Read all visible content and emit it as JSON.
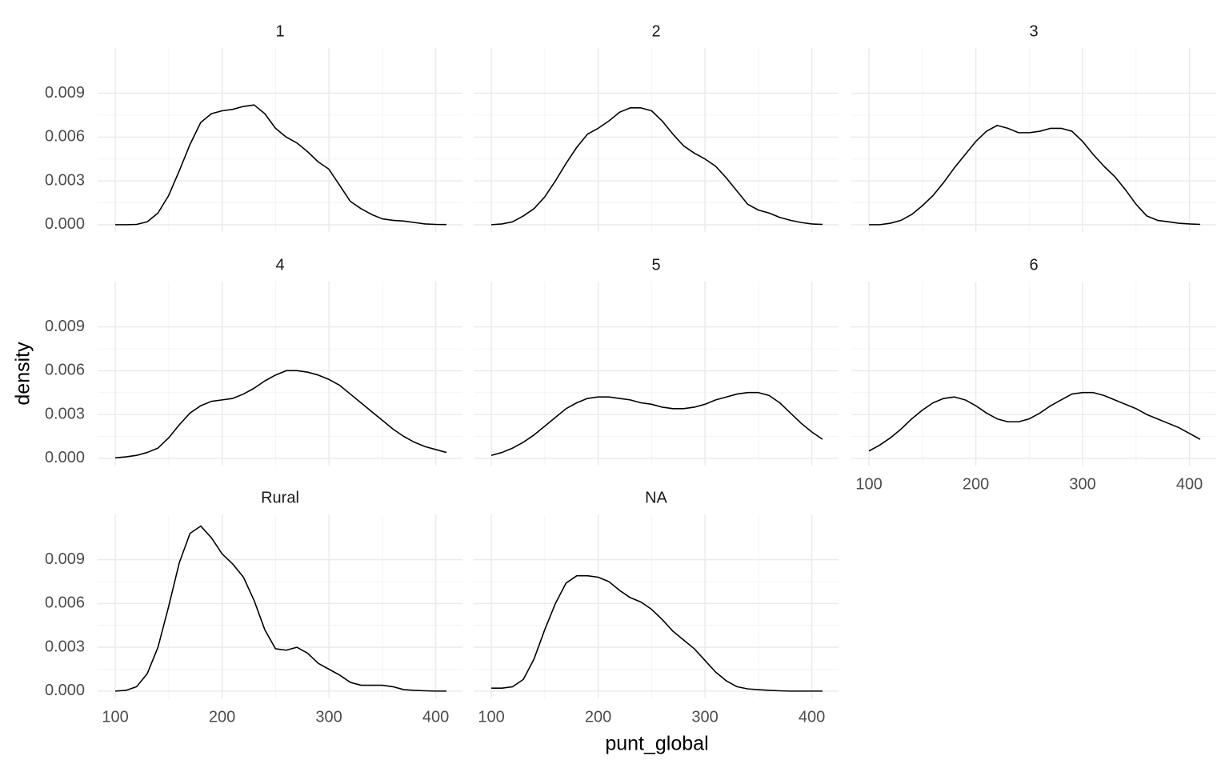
{
  "chart_data": {
    "type": "line",
    "xlabel": "punt_global",
    "ylabel": "density",
    "xlim": [
      83.5,
      425
    ],
    "ylim": [
      -0.0005,
      0.0121
    ],
    "xticks": [
      100,
      200,
      300,
      400
    ],
    "yticks": [
      {
        "value": 0,
        "label": "0.000"
      },
      0.003,
      0.006,
      0.009
    ],
    "grid": true,
    "color": "#000000",
    "x": [
      100,
      110,
      120,
      130,
      140,
      150,
      160,
      170,
      180,
      190,
      200,
      210,
      220,
      230,
      240,
      250,
      260,
      270,
      280,
      290,
      300,
      310,
      320,
      330,
      340,
      350,
      360,
      370,
      380,
      390,
      400,
      410
    ],
    "panels": [
      {
        "title": "1",
        "values": [
          0,
          0,
          2e-05,
          0.0002,
          0.0008,
          0.002,
          0.0037,
          0.0055,
          0.007,
          0.0076,
          0.0078,
          0.0079,
          0.0081,
          0.0082,
          0.0076,
          0.0066,
          0.006,
          0.0056,
          0.005,
          0.0043,
          0.0038,
          0.0027,
          0.0016,
          0.0011,
          0.0007,
          0.0004,
          0.0003,
          0.00025,
          0.00015,
          5e-05,
          2e-05,
          1e-05
        ]
      },
      {
        "title": "2",
        "values": [
          0,
          5e-05,
          0.0002,
          0.0006,
          0.0011,
          0.0019,
          0.003,
          0.0042,
          0.0053,
          0.0062,
          0.0066,
          0.0071,
          0.0077,
          0.008,
          0.008,
          0.0078,
          0.0071,
          0.0062,
          0.0054,
          0.0049,
          0.0045,
          0.004,
          0.0032,
          0.0023,
          0.0014,
          0.001,
          0.0008,
          0.0005,
          0.0003,
          0.00015,
          5e-05,
          2e-05
        ]
      },
      {
        "title": "3",
        "values": [
          0,
          0,
          0.0001,
          0.0003,
          0.0007,
          0.0013,
          0.002,
          0.0029,
          0.0039,
          0.0048,
          0.0057,
          0.0064,
          0.0068,
          0.0066,
          0.0063,
          0.0063,
          0.0064,
          0.0066,
          0.0066,
          0.0064,
          0.0057,
          0.0048,
          0.004,
          0.0033,
          0.0024,
          0.0014,
          0.0006,
          0.0003,
          0.0002,
          0.0001,
          5e-05,
          2e-05
        ]
      },
      {
        "title": "4",
        "values": [
          3e-05,
          0.0001,
          0.0002,
          0.0004,
          0.0007,
          0.0014,
          0.0023,
          0.0031,
          0.0036,
          0.0039,
          0.004,
          0.0041,
          0.0044,
          0.0048,
          0.0053,
          0.0057,
          0.006,
          0.006,
          0.0059,
          0.0057,
          0.0054,
          0.005,
          0.0044,
          0.0038,
          0.0032,
          0.0026,
          0.002,
          0.0015,
          0.0011,
          0.0008,
          0.0006,
          0.0004
        ]
      },
      {
        "title": "5",
        "values": [
          0.0002,
          0.0004,
          0.0007,
          0.0011,
          0.0016,
          0.0022,
          0.0028,
          0.0034,
          0.0038,
          0.0041,
          0.0042,
          0.0042,
          0.0041,
          0.004,
          0.0038,
          0.0037,
          0.0035,
          0.0034,
          0.0034,
          0.0035,
          0.0037,
          0.004,
          0.0042,
          0.0044,
          0.0045,
          0.0045,
          0.0043,
          0.0038,
          0.0031,
          0.0024,
          0.0018,
          0.0013
        ]
      },
      {
        "title": "6",
        "values": [
          0.0005,
          0.0009,
          0.0014,
          0.002,
          0.0027,
          0.0033,
          0.0038,
          0.0041,
          0.0042,
          0.004,
          0.0036,
          0.0031,
          0.0027,
          0.0025,
          0.0025,
          0.0027,
          0.0031,
          0.0036,
          0.004,
          0.0044,
          0.0045,
          0.0045,
          0.0043,
          0.004,
          0.0037,
          0.0034,
          0.003,
          0.0027,
          0.0024,
          0.0021,
          0.0017,
          0.0013
        ]
      },
      {
        "title": "Rural",
        "values": [
          0,
          5e-05,
          0.0003,
          0.0012,
          0.003,
          0.0058,
          0.0088,
          0.0108,
          0.0113,
          0.0105,
          0.0094,
          0.0087,
          0.0078,
          0.0062,
          0.0042,
          0.0029,
          0.0028,
          0.003,
          0.0026,
          0.0019,
          0.0015,
          0.0011,
          0.0006,
          0.0004,
          0.0004,
          0.0004,
          0.0003,
          0.0001,
          5e-05,
          2e-05,
          0,
          0
        ]
      },
      {
        "title": "NA",
        "values": [
          0.0002,
          0.0002,
          0.0003,
          0.0008,
          0.0022,
          0.0042,
          0.006,
          0.0074,
          0.0079,
          0.0079,
          0.0078,
          0.0075,
          0.0069,
          0.0064,
          0.0061,
          0.0056,
          0.0049,
          0.0041,
          0.0035,
          0.0029,
          0.0021,
          0.0013,
          0.0007,
          0.0003,
          0.00015,
          0.0001,
          5e-05,
          2e-05,
          0,
          0,
          0,
          0
        ]
      }
    ]
  }
}
